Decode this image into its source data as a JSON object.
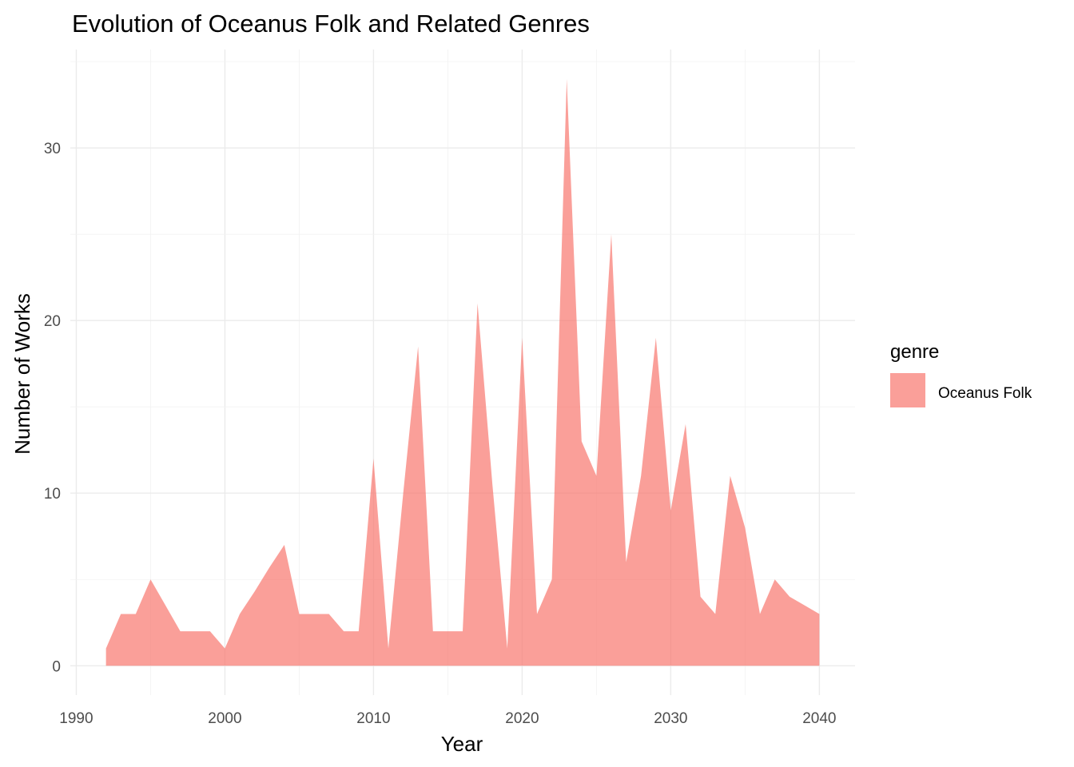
{
  "chart_data": {
    "type": "area",
    "title": "Evolution of Oceanus Folk and Related Genres",
    "xlabel": "Year",
    "ylabel": "Number of Works",
    "xlim": [
      1989.6,
      2042.4
    ],
    "ylim": [
      -1.7,
      35.7
    ],
    "x_ticks": [
      1990,
      2000,
      2010,
      2020,
      2030,
      2040
    ],
    "x_tick_labels": [
      "1990",
      "2000",
      "2010",
      "2020",
      "2030",
      "2040"
    ],
    "y_ticks": [
      0,
      10,
      20,
      30
    ],
    "y_tick_labels": [
      "0",
      "10",
      "20",
      "30"
    ],
    "grid": true,
    "legend_position": "right",
    "legend": {
      "title": "genre"
    },
    "series": [
      {
        "name": "Oceanus Folk",
        "color": "#F8766D",
        "opacity": 0.7,
        "x": [
          1992,
          1993,
          1994,
          1995,
          1996,
          1997,
          1998,
          1999,
          2000,
          2001,
          2002,
          2003,
          2004,
          2005,
          2006,
          2007,
          2008,
          2009,
          2010,
          2011,
          2012,
          2013,
          2014,
          2015,
          2016,
          2017,
          2018,
          2019,
          2020,
          2021,
          2022,
          2023,
          2024,
          2025,
          2026,
          2027,
          2028,
          2029,
          2030,
          2031,
          2032,
          2033,
          2034,
          2035,
          2036,
          2037,
          2038,
          2039,
          2040
        ],
        "values": [
          1,
          3,
          3,
          5,
          3.5,
          2,
          2,
          2,
          1,
          3,
          4.3,
          5.7,
          7,
          3,
          3,
          3,
          2,
          2,
          12,
          1,
          10,
          18.5,
          2,
          2,
          2,
          21,
          10.5,
          1,
          19,
          3,
          5,
          34,
          13,
          11,
          25,
          6,
          11,
          19,
          9,
          14,
          4,
          3,
          11,
          8,
          3,
          5,
          4,
          3.5,
          3
        ]
      }
    ]
  }
}
